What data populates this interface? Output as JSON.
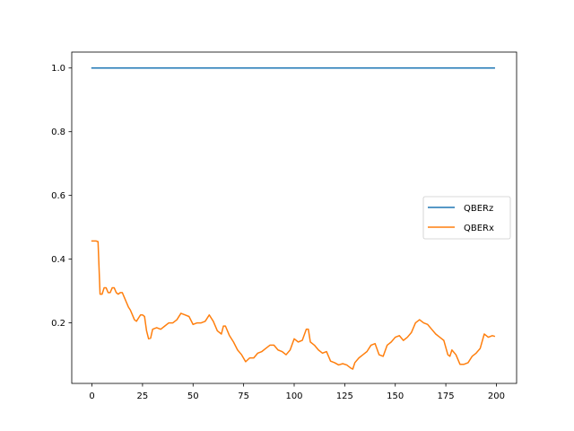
{
  "chart_data": {
    "type": "line",
    "title": "",
    "xlabel": "",
    "ylabel": "",
    "xlim": [
      -10,
      210
    ],
    "ylim": [
      0.01,
      1.05
    ],
    "xticks": [
      0,
      25,
      50,
      75,
      100,
      125,
      150,
      175,
      200
    ],
    "yticks": [
      0.2,
      0.4,
      0.6,
      0.8,
      1.0
    ],
    "xtick_labels": [
      "0",
      "25",
      "50",
      "75",
      "100",
      "125",
      "150",
      "175",
      "200"
    ],
    "ytick_labels": [
      "0.2",
      "0.4",
      "0.6",
      "0.8",
      "1.0"
    ],
    "grid": false,
    "legend_position": "center-right",
    "series": [
      {
        "name": "QBERz",
        "color": "#1f77b4",
        "x": [
          0,
          199
        ],
        "y": [
          1.0,
          1.0
        ]
      },
      {
        "name": "QBERx",
        "color": "#ff7f0e",
        "x": [
          0,
          1,
          2,
          3,
          4,
          5,
          6,
          7,
          8,
          9,
          10,
          11,
          12,
          13,
          14,
          15,
          16,
          17,
          18,
          19,
          20,
          21,
          22,
          23,
          24,
          25,
          26,
          27,
          28,
          29,
          30,
          32,
          34,
          36,
          38,
          40,
          42,
          44,
          46,
          48,
          50,
          52,
          54,
          56,
          58,
          60,
          62,
          64,
          65,
          66,
          68,
          70,
          72,
          74,
          76,
          78,
          80,
          82,
          84,
          86,
          88,
          90,
          92,
          94,
          96,
          98,
          100,
          102,
          104,
          106,
          107,
          108,
          110,
          112,
          114,
          116,
          118,
          120,
          122,
          124,
          126,
          128,
          129,
          130,
          132,
          134,
          136,
          138,
          140,
          142,
          144,
          146,
          148,
          150,
          152,
          154,
          156,
          158,
          160,
          162,
          164,
          166,
          168,
          170,
          172,
          174,
          176,
          177,
          178,
          180,
          182,
          184,
          186,
          188,
          190,
          192,
          194,
          196,
          198,
          199
        ],
        "y": [
          0.457,
          0.457,
          0.457,
          0.455,
          0.29,
          0.29,
          0.31,
          0.31,
          0.295,
          0.295,
          0.31,
          0.31,
          0.295,
          0.29,
          0.295,
          0.295,
          0.28,
          0.265,
          0.25,
          0.24,
          0.225,
          0.21,
          0.205,
          0.215,
          0.225,
          0.225,
          0.22,
          0.175,
          0.15,
          0.152,
          0.18,
          0.185,
          0.18,
          0.19,
          0.2,
          0.2,
          0.21,
          0.23,
          0.225,
          0.22,
          0.195,
          0.2,
          0.2,
          0.205,
          0.225,
          0.205,
          0.175,
          0.165,
          0.19,
          0.19,
          0.16,
          0.14,
          0.115,
          0.1,
          0.078,
          0.09,
          0.09,
          0.105,
          0.11,
          0.12,
          0.13,
          0.13,
          0.115,
          0.11,
          0.1,
          0.115,
          0.15,
          0.14,
          0.145,
          0.18,
          0.18,
          0.14,
          0.13,
          0.115,
          0.105,
          0.11,
          0.08,
          0.075,
          0.068,
          0.072,
          0.068,
          0.058,
          0.055,
          0.075,
          0.09,
          0.1,
          0.11,
          0.13,
          0.135,
          0.1,
          0.095,
          0.13,
          0.14,
          0.155,
          0.16,
          0.145,
          0.155,
          0.17,
          0.2,
          0.21,
          0.2,
          0.195,
          0.18,
          0.165,
          0.155,
          0.145,
          0.1,
          0.095,
          0.115,
          0.1,
          0.07,
          0.07,
          0.075,
          0.095,
          0.105,
          0.12,
          0.165,
          0.155,
          0.16,
          0.158
        ]
      }
    ]
  }
}
